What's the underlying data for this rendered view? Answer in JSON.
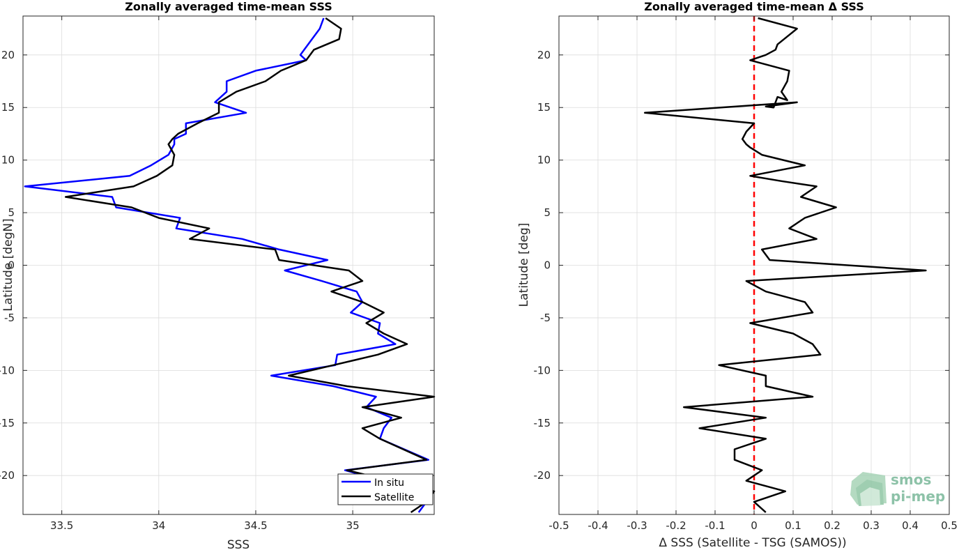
{
  "chart_data": [
    {
      "type": "line",
      "title": "Zonally averaged time-mean SSS",
      "xlabel": "SSS",
      "ylabel": "Latitude [degN]",
      "xlim": [
        33.3,
        35.42
      ],
      "ylim": [
        -23.7,
        23.7
      ],
      "xticks": [
        "33.5",
        "34",
        "34.5",
        "35"
      ],
      "yticks": [
        "20",
        "15",
        "10",
        "5",
        "0",
        "-5",
        "-10",
        "-15",
        "-20"
      ],
      "grid": true,
      "legend_position": "bottom-right",
      "series": [
        {
          "name": "In situ",
          "color": "#0000ff",
          "x": [
            34.85,
            34.83,
            34.75,
            34.73,
            34.76,
            34.5,
            34.35,
            34.35,
            34.29,
            34.45,
            34.14,
            34.14,
            34.08,
            34.08,
            34.05,
            33.96,
            33.85,
            33.31,
            33.76,
            33.78,
            34.11,
            34.09,
            34.43,
            34.62,
            34.87,
            34.65,
            34.84,
            35.02,
            35.05,
            34.99,
            35.14,
            35.13,
            35.22,
            34.92,
            34.91,
            34.58,
            34.9,
            35.12,
            35.07,
            35.2,
            35.16,
            35.14,
            35.39,
            34.96,
            35.35,
            35.38,
            35.34
          ],
          "y": [
            23.5,
            22.5,
            20.5,
            20,
            19.5,
            18.5,
            17.5,
            16.5,
            15.5,
            14.5,
            13.5,
            12.5,
            12,
            11.5,
            10.5,
            9.5,
            8.5,
            7.5,
            6.5,
            5.5,
            4.5,
            3.5,
            2.5,
            1.5,
            0.5,
            -0.5,
            -1.5,
            -2.5,
            -3.5,
            -4.5,
            -5.5,
            -6.5,
            -7.5,
            -8.5,
            -9.5,
            -10.5,
            -11.5,
            -12.5,
            -13.5,
            -14.5,
            -15.5,
            -16.5,
            -18.5,
            -19.5,
            -21.5,
            -22.5,
            -23.5
          ]
        },
        {
          "name": "Satellite",
          "color": "#000000",
          "x": [
            34.86,
            34.94,
            34.93,
            34.8,
            34.76,
            34.63,
            34.55,
            34.4,
            34.31,
            34.31,
            34.2,
            34.1,
            34.07,
            34.05,
            34.08,
            34.07,
            33.99,
            33.87,
            33.52,
            33.86,
            34.0,
            34.26,
            34.16,
            34.6,
            34.62,
            34.98,
            35.05,
            34.89,
            35.05,
            35.16,
            35.07,
            35.16,
            35.28,
            35.13,
            34.9,
            34.67,
            34.97,
            35.42,
            35.05,
            35.25,
            35.05,
            35.14,
            35.38,
            34.97,
            35.42,
            35.38,
            35.3
          ],
          "y": [
            23.5,
            22.5,
            21.5,
            20.5,
            19.5,
            18.5,
            17.5,
            16.5,
            15.5,
            14.5,
            13.5,
            12.5,
            12,
            11.5,
            10.5,
            9.5,
            8.5,
            7.5,
            6.5,
            5.5,
            4.5,
            3.5,
            2.5,
            1.5,
            0.5,
            -0.5,
            -1.5,
            -2.5,
            -3.5,
            -4.5,
            -5.5,
            -6.5,
            -7.5,
            -8.5,
            -9.5,
            -10.5,
            -11.5,
            -12.5,
            -13.5,
            -14.5,
            -15.5,
            -16.5,
            -18.5,
            -19.5,
            -21.5,
            -22.5,
            -23.5
          ]
        }
      ]
    },
    {
      "type": "line",
      "title": "Zonally averaged time-mean Δ SSS",
      "xlabel": "Δ SSS (Satellite - TSG (SAMOS))",
      "ylabel": "Latitude [deg]",
      "xlim": [
        -0.5,
        0.5
      ],
      "ylim": [
        -23.7,
        23.7
      ],
      "xticks": [
        "-0.5",
        "-0.4",
        "-0.3",
        "-0.2",
        "-0.1",
        "0",
        "0.1",
        "0.2",
        "0.3",
        "0.4",
        "0.5"
      ],
      "yticks": [
        "20",
        "15",
        "10",
        "5",
        "0",
        "-5",
        "-10",
        "-15",
        "-20"
      ],
      "grid": true,
      "reference_line": {
        "x": 0,
        "color": "#ff0000",
        "style": "dashed"
      },
      "series": [
        {
          "color": "#000000",
          "x": [
            0.01,
            0.11,
            0.06,
            0.055,
            0.03,
            -0.01,
            0.09,
            0.085,
            0.07,
            0.085,
            0.06,
            0.05,
            0.03,
            0.11,
            -0.28,
            0.0,
            -0.02,
            -0.03,
            -0.02,
            -0.01,
            0.02,
            0.13,
            -0.01,
            0.07,
            0.16,
            0.12,
            0.21,
            0.13,
            0.09,
            0.16,
            0.02,
            0.04,
            0.44,
            -0.02,
            0.03,
            0.13,
            0.15,
            -0.01,
            0.1,
            0.15,
            0.17,
            -0.09,
            0.03,
            0.03,
            0.15,
            -0.18,
            0.03,
            -0.14,
            0.03,
            -0.05,
            -0.05,
            0.02,
            -0.02,
            0.08,
            0.0,
            0.03
          ],
          "y": [
            23.5,
            22.5,
            21.0,
            20.5,
            20.0,
            19.5,
            18.5,
            17.5,
            16.5,
            15.7,
            16.0,
            15.0,
            15.1,
            15.5,
            14.5,
            13.5,
            12.7,
            12.0,
            11.5,
            11.2,
            10.5,
            9.5,
            8.5,
            8.0,
            7.5,
            6.5,
            5.5,
            4.5,
            3.5,
            2.5,
            1.5,
            0.5,
            -0.5,
            -1.5,
            -2.5,
            -3.5,
            -4.5,
            -5.5,
            -6.5,
            -7.5,
            -8.5,
            -9.5,
            -10.5,
            -11.5,
            -12.5,
            -13.5,
            -14.5,
            -15.5,
            -16.5,
            -17.5,
            -18.5,
            -19.5,
            -20.5,
            -21.5,
            -22.5,
            -23.5
          ]
        }
      ]
    }
  ],
  "legend": {
    "entries": [
      "In situ",
      "Satellite"
    ]
  },
  "logo": {
    "line1": "smos",
    "line2": "pi-mep"
  }
}
